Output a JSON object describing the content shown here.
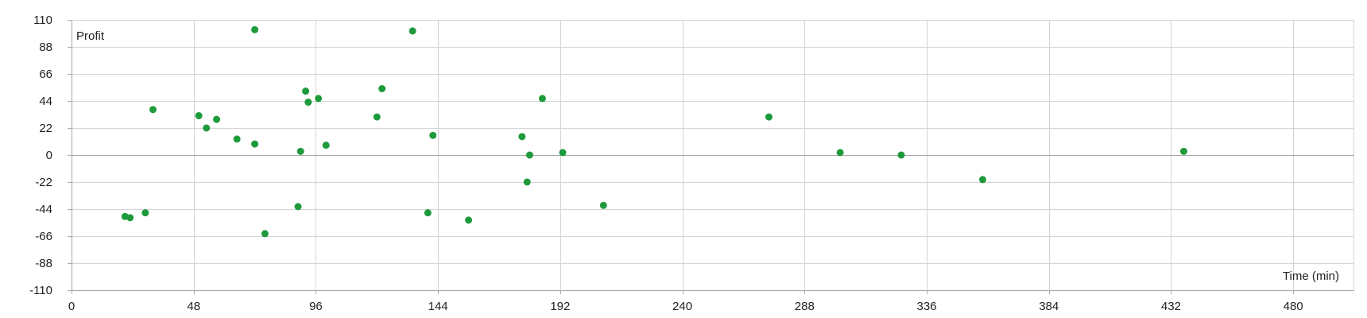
{
  "chart_data": {
    "type": "scatter",
    "title": "",
    "xlabel": "Time (min)",
    "ylabel": "Profit",
    "xlim": [
      0,
      504
    ],
    "ylim": [
      -110,
      110
    ],
    "xticks": [
      0,
      48,
      96,
      144,
      192,
      240,
      288,
      336,
      384,
      432,
      480
    ],
    "yticks": [
      110,
      88,
      66,
      44,
      22,
      0,
      -22,
      -44,
      -66,
      -88,
      -110
    ],
    "grid": true,
    "colors": {
      "point": "#1e9a3c",
      "grid": "#d4d4d4",
      "axis": "#a8a8a8"
    },
    "points": [
      {
        "x": 21,
        "y": -50
      },
      {
        "x": 23,
        "y": -51
      },
      {
        "x": 29,
        "y": -47
      },
      {
        "x": 32,
        "y": 37
      },
      {
        "x": 50,
        "y": 32
      },
      {
        "x": 53,
        "y": 22
      },
      {
        "x": 57,
        "y": 29
      },
      {
        "x": 65,
        "y": 13
      },
      {
        "x": 72,
        "y": 102
      },
      {
        "x": 72,
        "y": 9
      },
      {
        "x": 76,
        "y": -64
      },
      {
        "x": 89,
        "y": -42
      },
      {
        "x": 90,
        "y": 3
      },
      {
        "x": 92,
        "y": 52
      },
      {
        "x": 93,
        "y": 43
      },
      {
        "x": 97,
        "y": 46
      },
      {
        "x": 100,
        "y": 8
      },
      {
        "x": 120,
        "y": 31
      },
      {
        "x": 122,
        "y": 54
      },
      {
        "x": 134,
        "y": 101
      },
      {
        "x": 140,
        "y": -47
      },
      {
        "x": 142,
        "y": 16
      },
      {
        "x": 156,
        "y": -53
      },
      {
        "x": 177,
        "y": 15
      },
      {
        "x": 179,
        "y": -22
      },
      {
        "x": 180,
        "y": 0
      },
      {
        "x": 185,
        "y": 46
      },
      {
        "x": 193,
        "y": 2
      },
      {
        "x": 209,
        "y": -41
      },
      {
        "x": 274,
        "y": 31
      },
      {
        "x": 302,
        "y": 2
      },
      {
        "x": 326,
        "y": 0
      },
      {
        "x": 358,
        "y": -20
      },
      {
        "x": 437,
        "y": 3
      }
    ]
  }
}
